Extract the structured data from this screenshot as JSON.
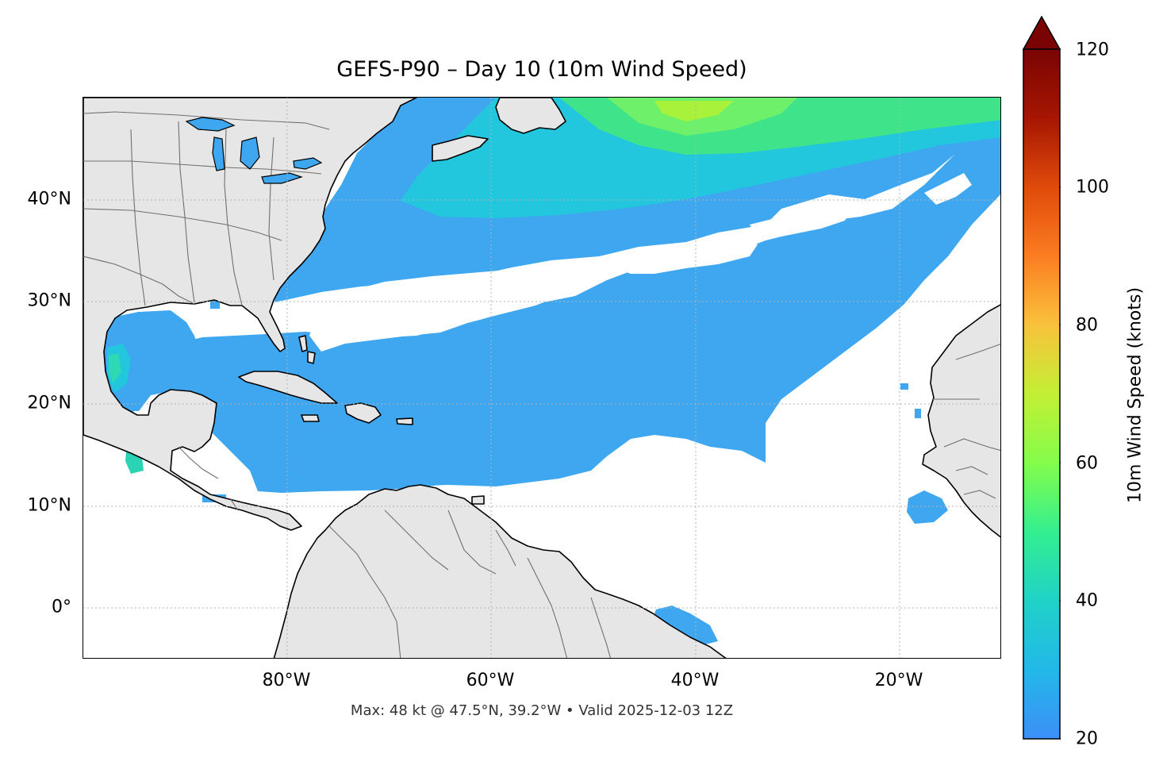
{
  "title": "GEFS-P90 – Day 10 (10m Wind Speed)",
  "footer": "Max: 48 kt @ 47.5°N, 39.2°W • Valid 2025-12-03 12Z",
  "map": {
    "lon_range": [
      -100,
      -10
    ],
    "lat_range": [
      -5,
      50
    ],
    "x_ticks": [
      "80°W",
      "60°W",
      "40°W",
      "20°W"
    ],
    "y_ticks": [
      "40°N",
      "30°N",
      "20°N",
      "10°N",
      "0°"
    ],
    "gridlines": "dotted",
    "land_color": "#e6e6e6",
    "coastline_color": "#000000",
    "border_color": "#707070"
  },
  "colorbar": {
    "label": "10m Wind Speed (knots)",
    "min": 20,
    "max": 120,
    "extend": "max",
    "ticks": [
      "20",
      "40",
      "60",
      "80",
      "100",
      "120"
    ],
    "colormap": "turbo",
    "colors": [
      "#3d8ff7",
      "#1fc8de",
      "#2af09a",
      "#84fd4b",
      "#c7ef34",
      "#f9c23c",
      "#fb7d21",
      "#d93806",
      "#a11201",
      "#7a0403"
    ]
  },
  "wind_max": {
    "speed_kt": 48,
    "lat": 47.5,
    "lon": -39.2
  }
}
